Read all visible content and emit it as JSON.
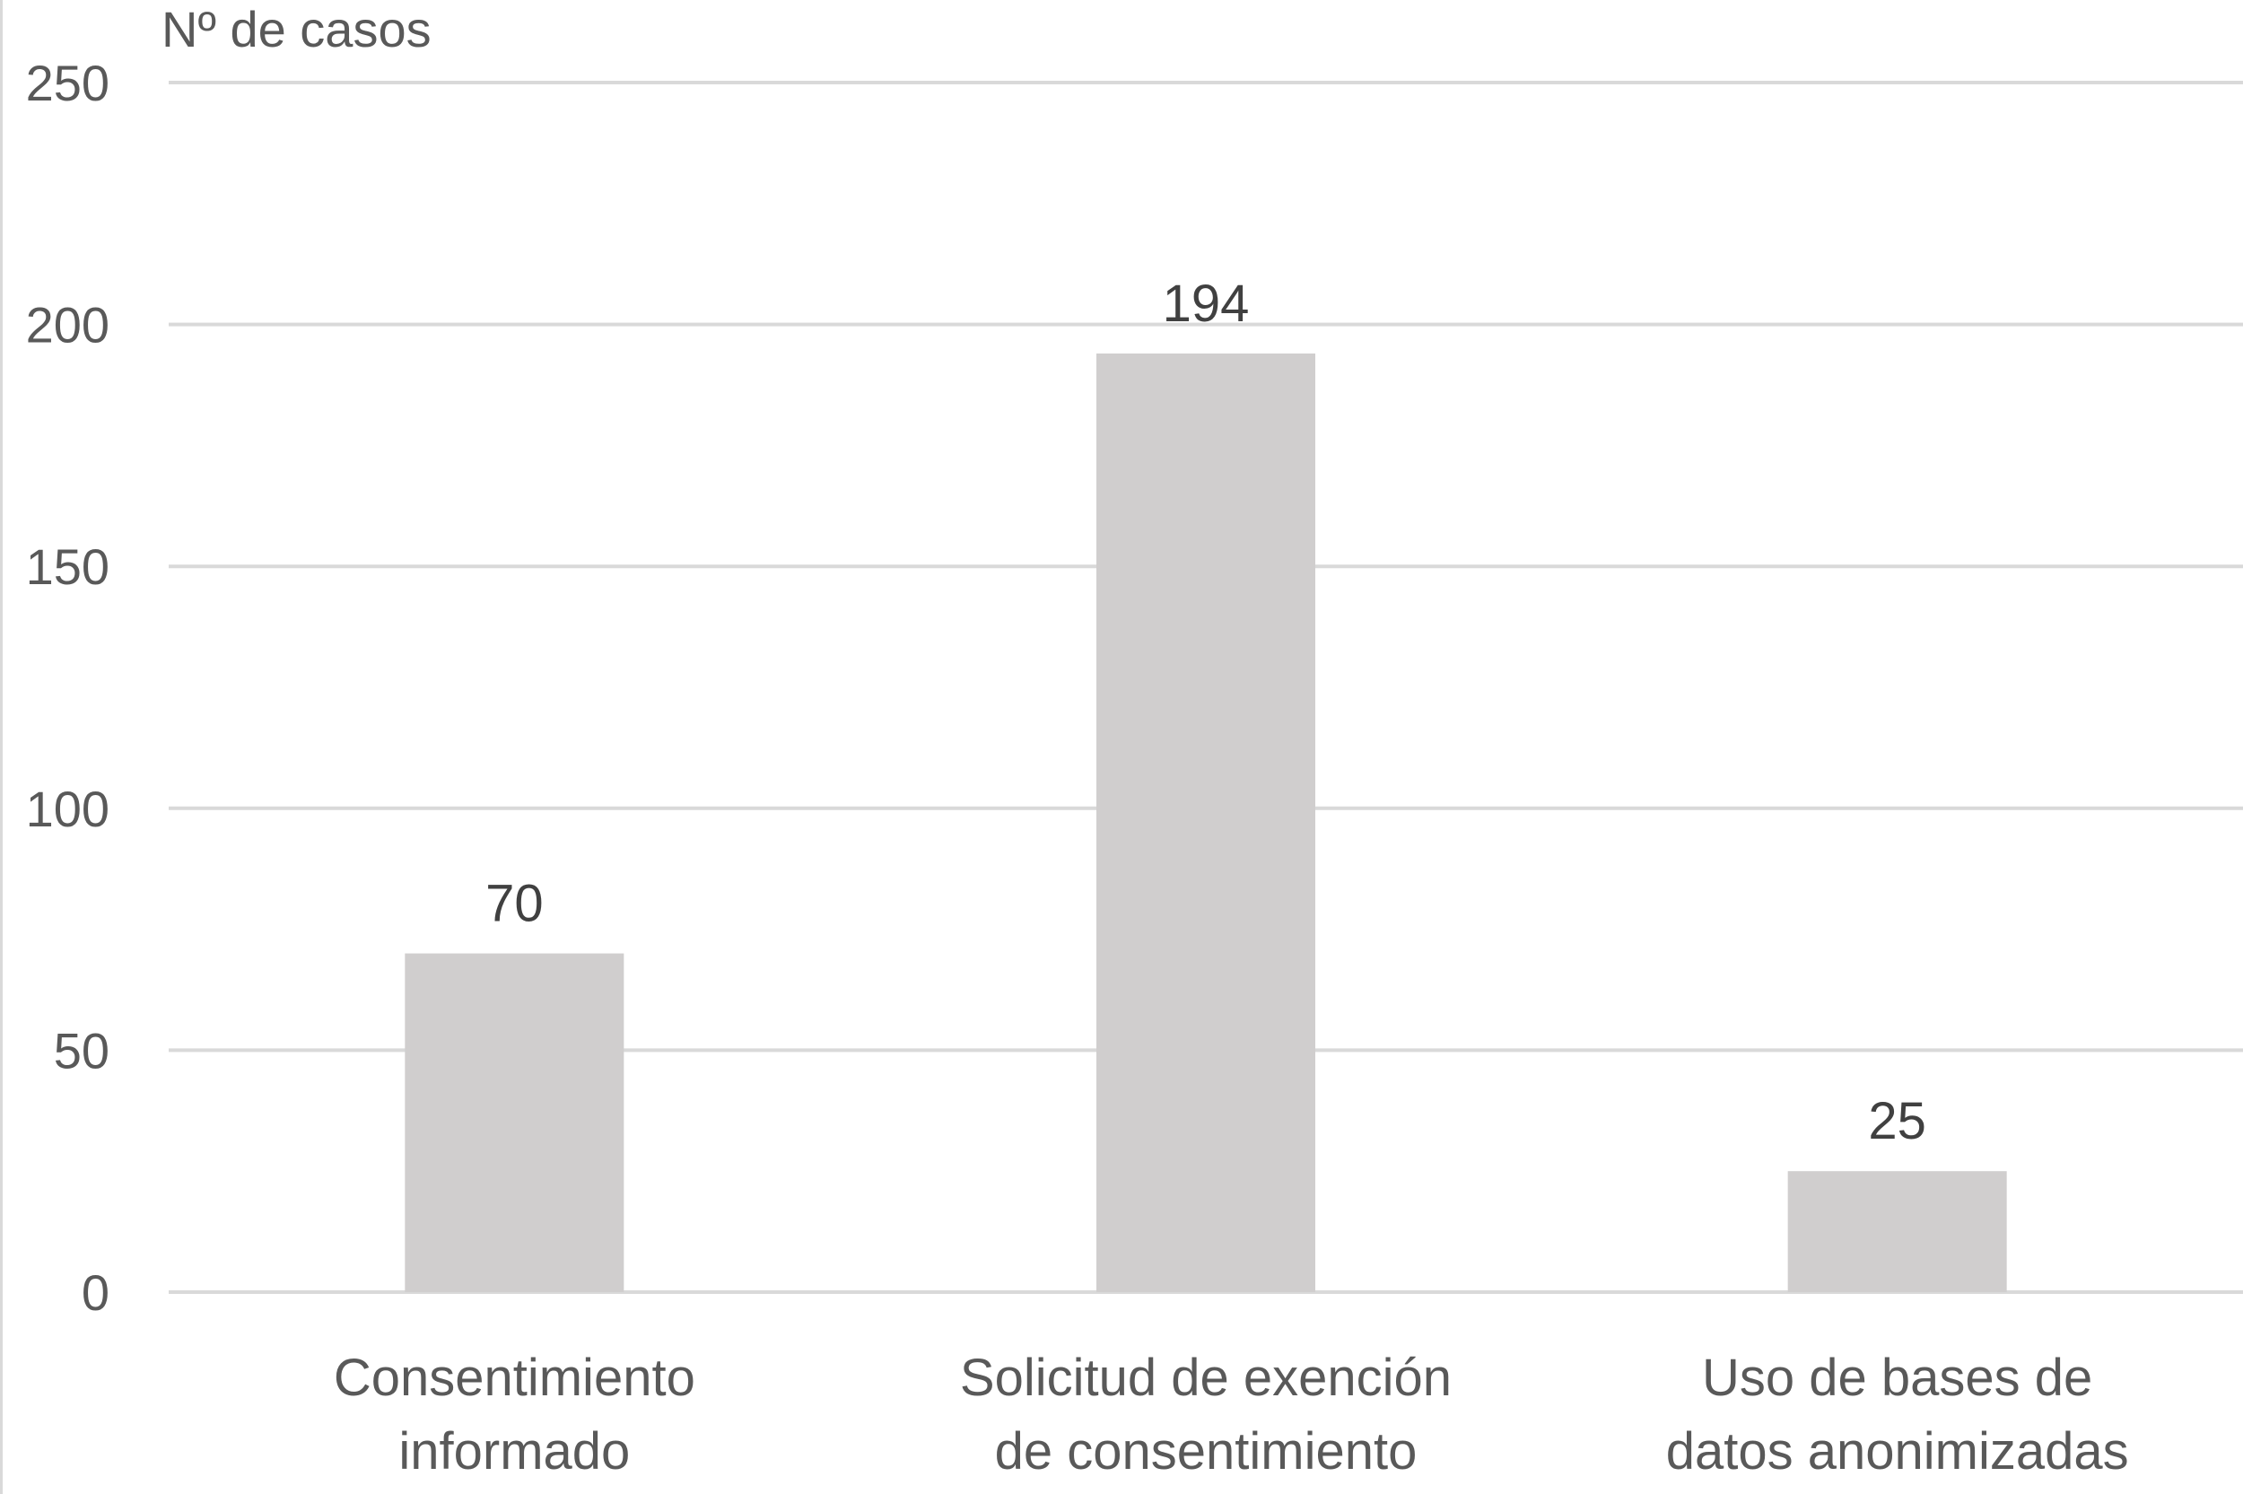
{
  "chart_data": {
    "type": "bar",
    "title": "",
    "ylabel": "Nº de casos",
    "xlabel": "",
    "ylim": [
      0,
      250
    ],
    "yticks": [
      0,
      50,
      100,
      150,
      200,
      250
    ],
    "grid": true,
    "categories": [
      [
        "Consentimiento",
        "informado"
      ],
      [
        "Solicitud de exención",
        "de consentimiento"
      ],
      [
        "Uso de bases de",
        "datos anonimizadas"
      ]
    ],
    "values": [
      70,
      194,
      25
    ],
    "data_labels": [
      "70",
      "194",
      "25"
    ],
    "colors": {
      "bar": "#d0cece",
      "grid": "#d9d9d9",
      "text": "#595959",
      "label": "#404040"
    }
  }
}
